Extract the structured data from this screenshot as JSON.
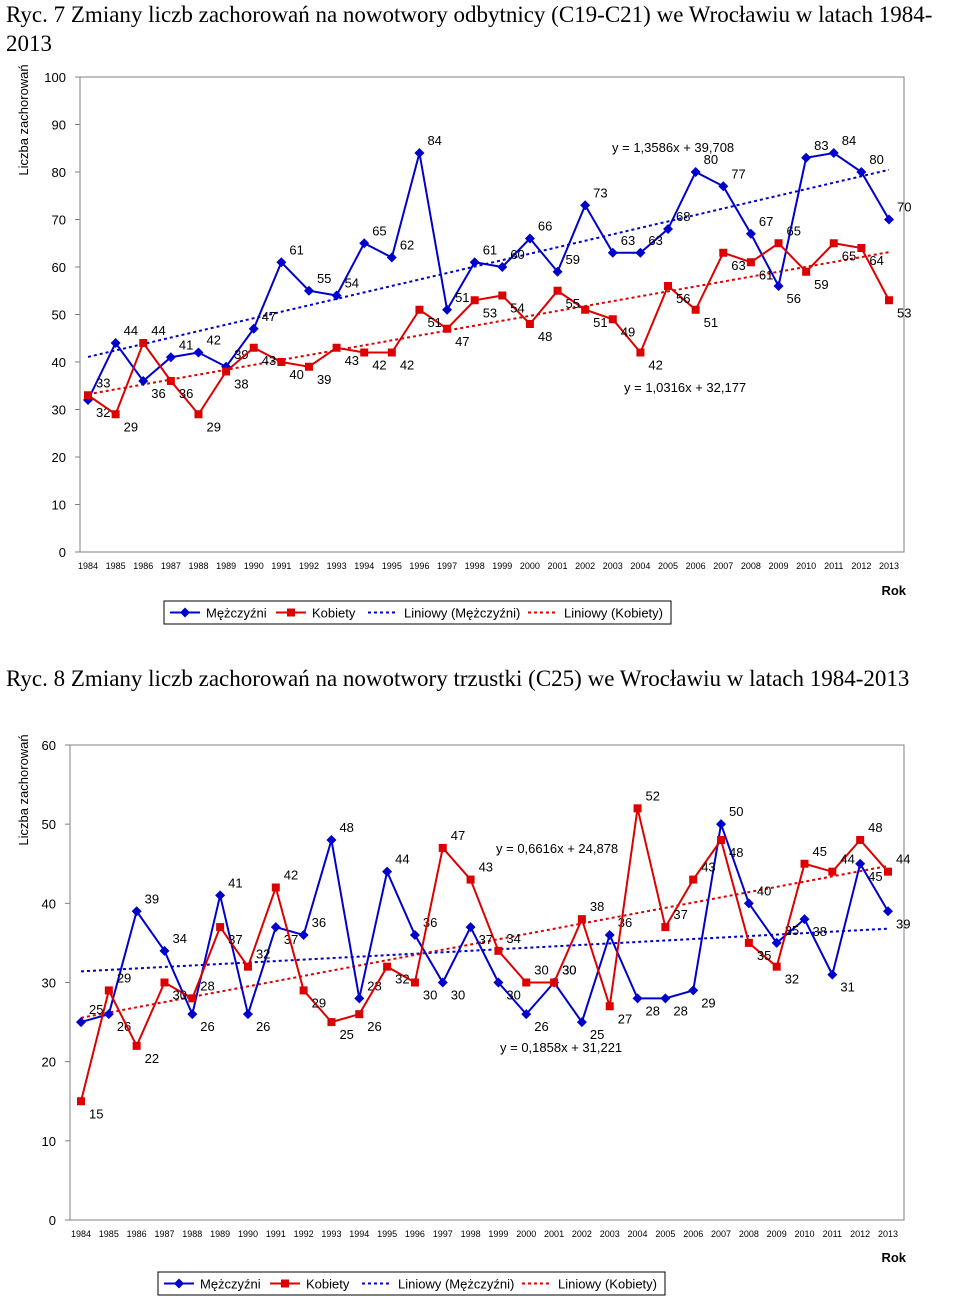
{
  "chart_data": [
    {
      "type": "line",
      "title": "Ryc. 7 Zmiany liczb zachorowań na nowotwory odbytnicy (C19-C21) we Wrocławiu w latach 1984-2013",
      "xlabel": "Rok",
      "ylabel": "Liczba zachorowań",
      "ylim": [
        0,
        100
      ],
      "yticks": [
        "0",
        "10",
        "20",
        "30",
        "40",
        "50",
        "60",
        "70",
        "80",
        "90",
        "100"
      ],
      "categories": [
        "1984",
        "1985",
        "1986",
        "1987",
        "1988",
        "1989",
        "1990",
        "1991",
        "1992",
        "1993",
        "1994",
        "1995",
        "1996",
        "1997",
        "1998",
        "1999",
        "2000",
        "2001",
        "2002",
        "2003",
        "2004",
        "2005",
        "2006",
        "2007",
        "2008",
        "2009",
        "2010",
        "2011",
        "2012",
        "2013"
      ],
      "series": [
        {
          "name": "Mężczyźni",
          "color": "#0000cc",
          "marker": "diamond",
          "values": [
            32,
            44,
            36,
            41,
            42,
            39,
            47,
            61,
            55,
            54,
            65,
            62,
            84,
            51,
            61,
            60,
            66,
            59,
            73,
            63,
            63,
            68,
            80,
            77,
            67,
            56,
            83,
            84,
            80,
            70
          ]
        },
        {
          "name": "Kobiety",
          "color": "#dd0000",
          "marker": "square",
          "values": [
            33,
            29,
            44,
            36,
            29,
            38,
            43,
            40,
            39,
            43,
            42,
            42,
            51,
            47,
            53,
            54,
            48,
            55,
            51,
            49,
            42,
            56,
            51,
            63,
            61,
            65,
            59,
            65,
            64,
            53
          ]
        }
      ],
      "trendlines": [
        {
          "name": "Liniowy (Mężczyźni)",
          "color": "#0000cc",
          "equation": "y = 1,3586x + 39,708",
          "slope": 1.3586,
          "intercept": 39.708
        },
        {
          "name": "Liniowy (Kobiety)",
          "color": "#dd0000",
          "equation": "y = 1,0316x + 32,177",
          "slope": 1.0316,
          "intercept": 32.177
        }
      ],
      "legend": "bottom"
    },
    {
      "type": "line",
      "title": "Ryc. 8 Zmiany liczb zachorowań na nowotwory trzustki (C25) we Wrocławiu w latach 1984-2013",
      "xlabel": "Rok",
      "ylabel": "Liczba zachorowań",
      "ylim": [
        0,
        60
      ],
      "yticks": [
        "0",
        "10",
        "20",
        "30",
        "40",
        "50",
        "60"
      ],
      "categories": [
        "1984",
        "1985",
        "1986",
        "1987",
        "1988",
        "1989",
        "1990",
        "1991",
        "1992",
        "1993",
        "1994",
        "1995",
        "1996",
        "1997",
        "1998",
        "1999",
        "2000",
        "2001",
        "2002",
        "2003",
        "2004",
        "2005",
        "2006",
        "2007",
        "2008",
        "2009",
        "2010",
        "2011",
        "2012",
        "2013"
      ],
      "series": [
        {
          "name": "Mężczyźni",
          "color": "#0000cc",
          "marker": "diamond",
          "values": [
            25,
            26,
            39,
            34,
            26,
            41,
            26,
            37,
            36,
            48,
            28,
            44,
            36,
            30,
            37,
            30,
            26,
            30,
            25,
            36,
            28,
            28,
            29,
            50,
            40,
            35,
            38,
            31,
            45,
            39
          ]
        },
        {
          "name": "Kobiety",
          "color": "#dd0000",
          "marker": "square",
          "values": [
            15,
            29,
            22,
            30,
            28,
            37,
            32,
            42,
            29,
            25,
            26,
            32,
            30,
            47,
            43,
            34,
            30,
            30,
            38,
            27,
            52,
            37,
            43,
            48,
            35,
            32,
            45,
            44,
            48,
            44
          ]
        }
      ],
      "trendlines": [
        {
          "name": "Liniowy (Mężczyźni)",
          "color": "#0000cc",
          "equation": "y = 0,1858x + 31,221",
          "slope": 0.1858,
          "intercept": 31.221
        },
        {
          "name": "Liniowy (Kobiety)",
          "color": "#dd0000",
          "equation": "y = 0,6616x + 24,878",
          "slope": 0.6616,
          "intercept": 24.878
        }
      ],
      "legend": "bottom"
    }
  ]
}
